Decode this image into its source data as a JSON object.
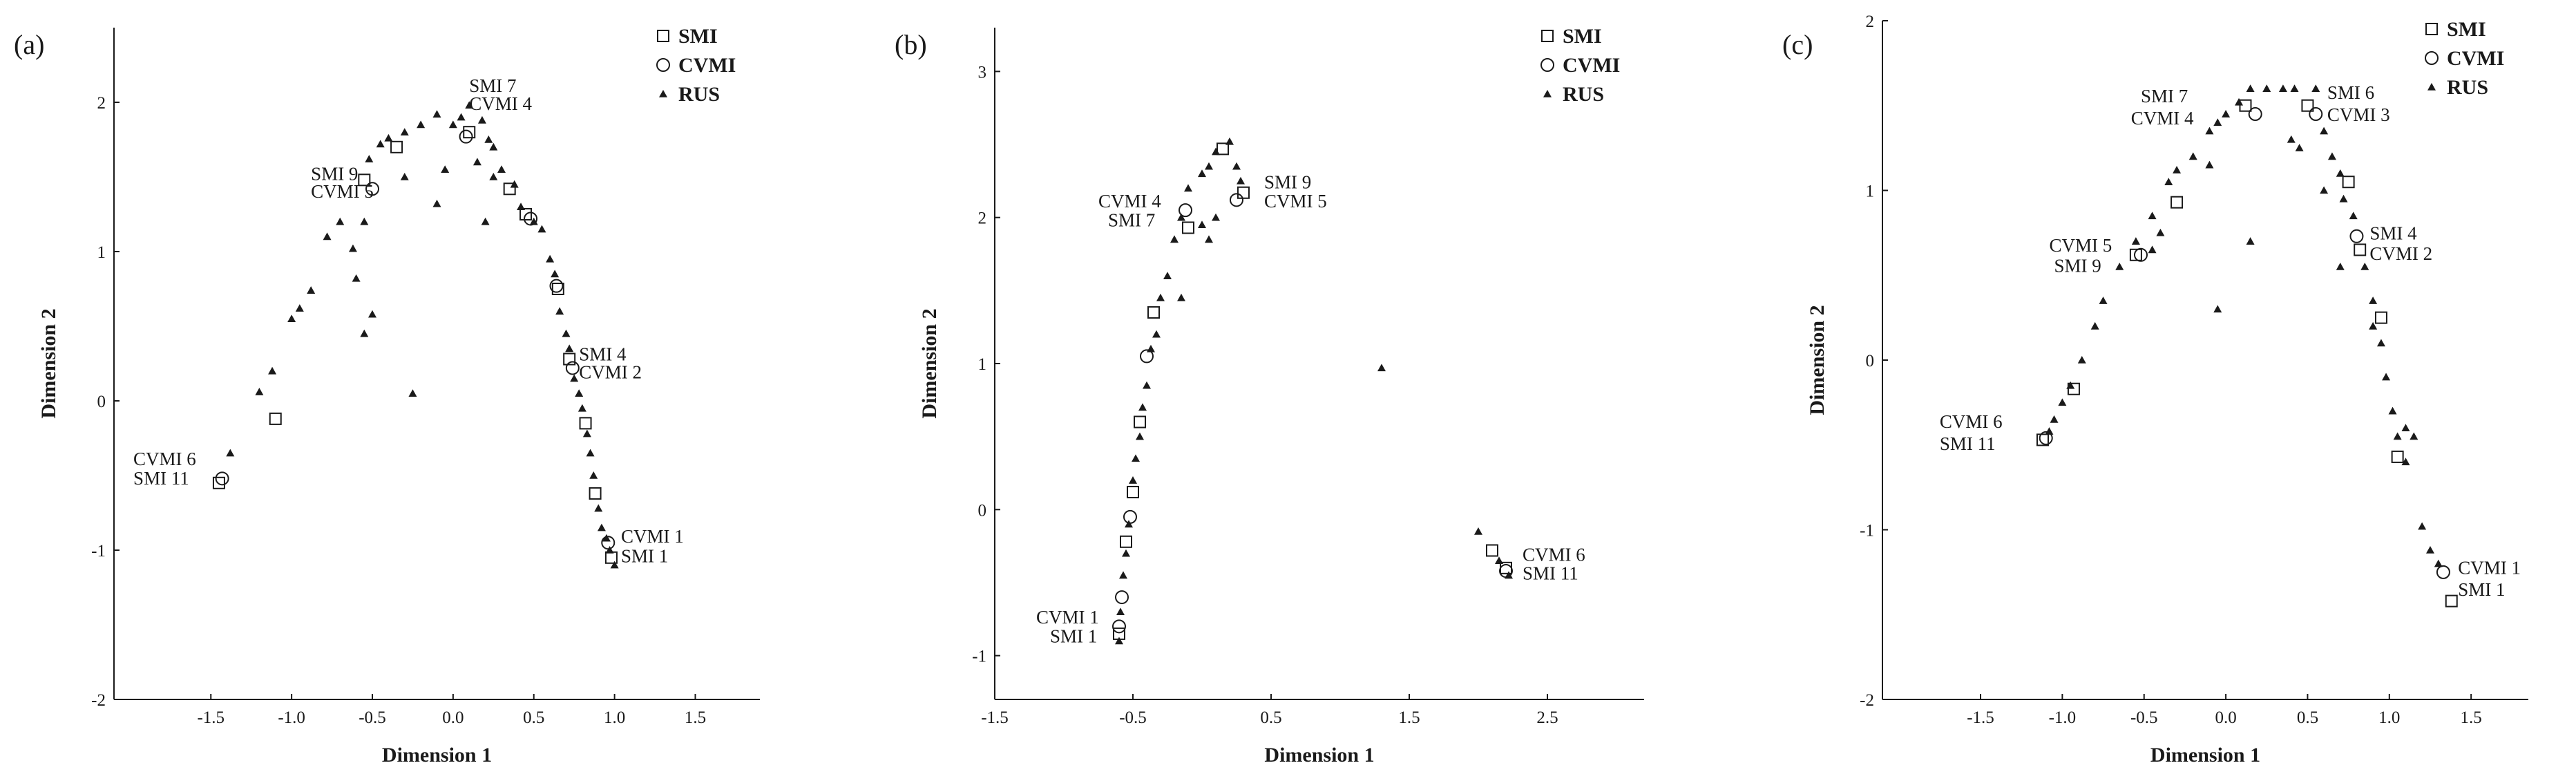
{
  "chart_data": [
    {
      "type": "scatter",
      "panel_label": "(a)",
      "xlabel": "Dimension 1",
      "ylabel": "Dimension 2",
      "xlim": [
        -2.1,
        1.9
      ],
      "ylim": [
        -2.0,
        2.5
      ],
      "xticks": [
        -1.5,
        -1.0,
        -0.5,
        0.0,
        0.5,
        1.0,
        1.5
      ],
      "xtick_labels": [
        "-1.5",
        "-1.0",
        "-0.5",
        "0.0",
        "0.5",
        "1.0",
        "1.5"
      ],
      "yticks": [
        -2,
        -1,
        0,
        1,
        2
      ],
      "ytick_labels": [
        "-2",
        "-1",
        "0",
        "1",
        "2"
      ],
      "legend_position": "top-right",
      "series": [
        {
          "name": "SMI",
          "marker": "square",
          "points": [
            [
              -0.55,
              1.48
            ],
            [
              -0.35,
              1.7
            ],
            [
              0.1,
              1.8
            ],
            [
              0.35,
              1.42
            ],
            [
              0.45,
              1.25
            ],
            [
              0.65,
              0.75
            ],
            [
              0.72,
              0.28
            ],
            [
              0.82,
              -0.15
            ],
            [
              0.88,
              -0.62
            ],
            [
              0.98,
              -1.05
            ],
            [
              -1.1,
              -0.12
            ],
            [
              -1.45,
              -0.55
            ]
          ]
        },
        {
          "name": "CVMI",
          "marker": "circle",
          "points": [
            [
              -0.5,
              1.42
            ],
            [
              0.08,
              1.77
            ],
            [
              0.48,
              1.22
            ],
            [
              0.64,
              0.77
            ],
            [
              0.74,
              0.22
            ],
            [
              0.96,
              -0.95
            ],
            [
              -1.43,
              -0.52
            ]
          ]
        },
        {
          "name": "RUS",
          "marker": "triangle",
          "points": [
            [
              -1.38,
              -0.35
            ],
            [
              -1.2,
              0.06
            ],
            [
              -1.12,
              0.2
            ],
            [
              -1.0,
              0.55
            ],
            [
              -0.95,
              0.62
            ],
            [
              -0.88,
              0.74
            ],
            [
              -0.78,
              1.1
            ],
            [
              -0.7,
              1.2
            ],
            [
              -0.62,
              1.02
            ],
            [
              -0.6,
              0.82
            ],
            [
              -0.52,
              1.62
            ],
            [
              -0.45,
              1.72
            ],
            [
              -0.4,
              1.76
            ],
            [
              -0.3,
              1.8
            ],
            [
              -0.2,
              1.85
            ],
            [
              -0.1,
              1.92
            ],
            [
              0.0,
              1.85
            ],
            [
              0.05,
              1.9
            ],
            [
              0.1,
              1.98
            ],
            [
              0.18,
              1.88
            ],
            [
              0.22,
              1.75
            ],
            [
              0.25,
              1.7
            ],
            [
              0.3,
              1.55
            ],
            [
              0.38,
              1.45
            ],
            [
              0.42,
              1.3
            ],
            [
              0.5,
              1.2
            ],
            [
              0.55,
              1.15
            ],
            [
              0.6,
              0.95
            ],
            [
              0.63,
              0.85
            ],
            [
              0.66,
              0.6
            ],
            [
              0.7,
              0.45
            ],
            [
              0.72,
              0.35
            ],
            [
              0.75,
              0.15
            ],
            [
              0.78,
              0.05
            ],
            [
              0.8,
              -0.05
            ],
            [
              0.83,
              -0.22
            ],
            [
              0.85,
              -0.35
            ],
            [
              0.87,
              -0.5
            ],
            [
              0.9,
              -0.72
            ],
            [
              0.92,
              -0.85
            ],
            [
              0.95,
              -0.92
            ],
            [
              0.97,
              -1.0
            ],
            [
              1.0,
              -1.1
            ],
            [
              -0.55,
              0.45
            ],
            [
              -0.5,
              0.58
            ],
            [
              -0.25,
              0.05
            ],
            [
              -0.55,
              1.2
            ],
            [
              -0.1,
              1.32
            ],
            [
              -0.05,
              1.55
            ],
            [
              0.2,
              1.2
            ],
            [
              0.25,
              1.5
            ],
            [
              0.15,
              1.6
            ],
            [
              -0.3,
              1.5
            ]
          ]
        }
      ],
      "annotations": [
        {
          "text": "SMI 7",
          "x": 0.1,
          "y": 2.07
        },
        {
          "text": "CVMI 4",
          "x": 0.1,
          "y": 1.95
        },
        {
          "text": "SMI 9",
          "x": -0.88,
          "y": 1.48
        },
        {
          "text": "CVMI 5",
          "x": -0.88,
          "y": 1.36
        },
        {
          "text": "SMI 4",
          "x": 0.78,
          "y": 0.27
        },
        {
          "text": "CVMI 2",
          "x": 0.78,
          "y": 0.15
        },
        {
          "text": "CVMI 6",
          "x": -1.98,
          "y": -0.43
        },
        {
          "text": "SMI 11",
          "x": -1.98,
          "y": -0.56
        },
        {
          "text": "CVMI 1",
          "x": 1.04,
          "y": -0.95
        },
        {
          "text": "SMI 1",
          "x": 1.04,
          "y": -1.08
        }
      ]
    },
    {
      "type": "scatter",
      "panel_label": "(b)",
      "xlabel": "Dimension 1",
      "ylabel": "Dimension 2",
      "xlim": [
        -1.5,
        3.2
      ],
      "ylim": [
        -1.3,
        3.3
      ],
      "xticks": [
        -1.5,
        -0.5,
        0.5,
        1.5,
        2.5
      ],
      "xtick_labels": [
        "-1.5",
        "-0.5",
        "0.5",
        "1.5",
        "2.5"
      ],
      "yticks": [
        -1,
        0,
        1,
        2,
        3
      ],
      "ytick_labels": [
        "-1",
        "0",
        "1",
        "2",
        "3"
      ],
      "legend_position": "top-right",
      "series": [
        {
          "name": "SMI",
          "marker": "square",
          "points": [
            [
              -0.6,
              -0.85
            ],
            [
              -0.55,
              -0.22
            ],
            [
              -0.5,
              0.12
            ],
            [
              -0.45,
              0.6
            ],
            [
              -0.35,
              1.35
            ],
            [
              -0.1,
              1.93
            ],
            [
              0.15,
              2.47
            ],
            [
              0.3,
              2.17
            ],
            [
              2.1,
              -0.28
            ],
            [
              2.2,
              -0.4
            ]
          ]
        },
        {
          "name": "CVMI",
          "marker": "circle",
          "points": [
            [
              -0.6,
              -0.8
            ],
            [
              -0.58,
              -0.6
            ],
            [
              -0.52,
              -0.05
            ],
            [
              -0.4,
              1.05
            ],
            [
              -0.12,
              2.05
            ],
            [
              0.25,
              2.12
            ],
            [
              2.2,
              -0.42
            ]
          ]
        },
        {
          "name": "RUS",
          "marker": "triangle",
          "points": [
            [
              -0.6,
              -0.9
            ],
            [
              -0.59,
              -0.7
            ],
            [
              -0.57,
              -0.45
            ],
            [
              -0.55,
              -0.3
            ],
            [
              -0.53,
              -0.1
            ],
            [
              -0.5,
              0.2
            ],
            [
              -0.48,
              0.35
            ],
            [
              -0.45,
              0.5
            ],
            [
              -0.43,
              0.7
            ],
            [
              -0.4,
              0.85
            ],
            [
              -0.37,
              1.1
            ],
            [
              -0.33,
              1.2
            ],
            [
              -0.3,
              1.45
            ],
            [
              -0.25,
              1.6
            ],
            [
              -0.2,
              1.85
            ],
            [
              -0.15,
              2.0
            ],
            [
              -0.1,
              2.2
            ],
            [
              0.0,
              2.3
            ],
            [
              0.05,
              2.35
            ],
            [
              0.1,
              2.45
            ],
            [
              0.2,
              2.52
            ],
            [
              0.25,
              2.35
            ],
            [
              0.28,
              2.25
            ],
            [
              0.1,
              2.0
            ],
            [
              0.0,
              1.95
            ],
            [
              0.05,
              1.85
            ],
            [
              -0.15,
              1.45
            ],
            [
              1.3,
              0.97
            ],
            [
              2.0,
              -0.15
            ],
            [
              2.15,
              -0.35
            ],
            [
              2.22,
              -0.45
            ]
          ]
        }
      ],
      "annotations": [
        {
          "text": "SMI 9",
          "x": 0.45,
          "y": 2.2
        },
        {
          "text": "CVMI 5",
          "x": 0.45,
          "y": 2.07
        },
        {
          "text": "CVMI 4",
          "x": -0.75,
          "y": 2.07
        },
        {
          "text": "SMI 7",
          "x": -0.68,
          "y": 1.94
        },
        {
          "text": "CVMI 6",
          "x": 2.32,
          "y": -0.35
        },
        {
          "text": "SMI 11",
          "x": 2.32,
          "y": -0.48
        },
        {
          "text": "CVMI 1",
          "x": -1.2,
          "y": -0.78
        },
        {
          "text": "SMI 1",
          "x": -1.1,
          "y": -0.91
        }
      ]
    },
    {
      "type": "scatter",
      "panel_label": "(c)",
      "xlabel": "Dimension 1",
      "ylabel": "Dimension 2",
      "xlim": [
        -2.1,
        1.85
      ],
      "ylim": [
        -2.0,
        2.0
      ],
      "xticks": [
        -1.5,
        -1.0,
        -0.5,
        0.0,
        0.5,
        1.0,
        1.5
      ],
      "xtick_labels": [
        "-1.5",
        "-1.0",
        "-0.5",
        "0.0",
        "0.5",
        "1.0",
        "1.5"
      ],
      "yticks": [
        -2,
        -1,
        0,
        1,
        2
      ],
      "ytick_labels": [
        "-2",
        "-1",
        "0",
        "1",
        "2"
      ],
      "legend_position": "top-right",
      "series": [
        {
          "name": "SMI",
          "marker": "square",
          "points": [
            [
              0.12,
              1.5
            ],
            [
              0.5,
              1.5
            ],
            [
              0.75,
              1.05
            ],
            [
              0.82,
              0.65
            ],
            [
              0.95,
              0.25
            ],
            [
              -0.3,
              0.93
            ],
            [
              -0.93,
              -0.17
            ],
            [
              1.05,
              -0.57
            ],
            [
              1.38,
              -1.42
            ],
            [
              -1.12,
              -0.47
            ],
            [
              -0.55,
              0.62
            ]
          ]
        },
        {
          "name": "CVMI",
          "marker": "circle",
          "points": [
            [
              0.18,
              1.45
            ],
            [
              0.55,
              1.45
            ],
            [
              0.8,
              0.73
            ],
            [
              -0.52,
              0.62
            ],
            [
              -1.1,
              -0.46
            ],
            [
              1.33,
              -1.25
            ]
          ]
        },
        {
          "name": "RUS",
          "marker": "triangle",
          "points": [
            [
              0.15,
              1.6
            ],
            [
              0.25,
              1.6
            ],
            [
              0.35,
              1.6
            ],
            [
              0.42,
              1.6
            ],
            [
              0.55,
              1.6
            ],
            [
              0.08,
              1.52
            ],
            [
              0.0,
              1.45
            ],
            [
              -0.05,
              1.4
            ],
            [
              -0.1,
              1.35
            ],
            [
              -0.2,
              1.2
            ],
            [
              -0.35,
              1.05
            ],
            [
              -0.45,
              0.85
            ],
            [
              -0.55,
              0.7
            ],
            [
              -0.65,
              0.55
            ],
            [
              -0.75,
              0.35
            ],
            [
              -0.8,
              0.2
            ],
            [
              -0.88,
              0.0
            ],
            [
              -0.95,
              -0.15
            ],
            [
              -1.0,
              -0.25
            ],
            [
              -1.05,
              -0.35
            ],
            [
              -1.08,
              -0.42
            ],
            [
              0.6,
              1.35
            ],
            [
              0.65,
              1.2
            ],
            [
              0.7,
              1.1
            ],
            [
              0.78,
              0.85
            ],
            [
              0.85,
              0.55
            ],
            [
              0.9,
              0.35
            ],
            [
              0.95,
              0.1
            ],
            [
              0.98,
              -0.1
            ],
            [
              1.02,
              -0.3
            ],
            [
              1.05,
              -0.45
            ],
            [
              1.1,
              -0.6
            ],
            [
              1.2,
              -0.98
            ],
            [
              1.25,
              -1.12
            ],
            [
              1.3,
              -1.2
            ],
            [
              0.15,
              0.7
            ],
            [
              -0.05,
              0.3
            ],
            [
              -0.1,
              1.15
            ],
            [
              -0.3,
              1.12
            ],
            [
              0.4,
              1.3
            ],
            [
              0.45,
              1.25
            ],
            [
              0.6,
              1.0
            ],
            [
              0.72,
              0.95
            ],
            [
              0.7,
              0.55
            ],
            [
              0.9,
              0.2
            ],
            [
              1.1,
              -0.4
            ],
            [
              1.15,
              -0.45
            ],
            [
              -0.45,
              0.65
            ],
            [
              -0.4,
              0.75
            ]
          ]
        }
      ],
      "annotations": [
        {
          "text": "SMI 7",
          "x": -0.52,
          "y": 1.52
        },
        {
          "text": "CVMI 4",
          "x": -0.58,
          "y": 1.39
        },
        {
          "text": "SMI 6",
          "x": 0.62,
          "y": 1.54
        },
        {
          "text": "CVMI 3",
          "x": 0.62,
          "y": 1.41
        },
        {
          "text": "CVMI 5",
          "x": -1.08,
          "y": 0.64
        },
        {
          "text": "SMI 9",
          "x": -1.05,
          "y": 0.52
        },
        {
          "text": "SMI 4",
          "x": 0.88,
          "y": 0.71
        },
        {
          "text": "CVMI 2",
          "x": 0.88,
          "y": 0.59
        },
        {
          "text": "CVMI 6",
          "x": -1.75,
          "y": -0.4
        },
        {
          "text": "SMI 11",
          "x": -1.75,
          "y": -0.53
        },
        {
          "text": "CVMI 1",
          "x": 1.42,
          "y": -1.26
        },
        {
          "text": "SMI 1",
          "x": 1.42,
          "y": -1.39
        }
      ]
    }
  ]
}
